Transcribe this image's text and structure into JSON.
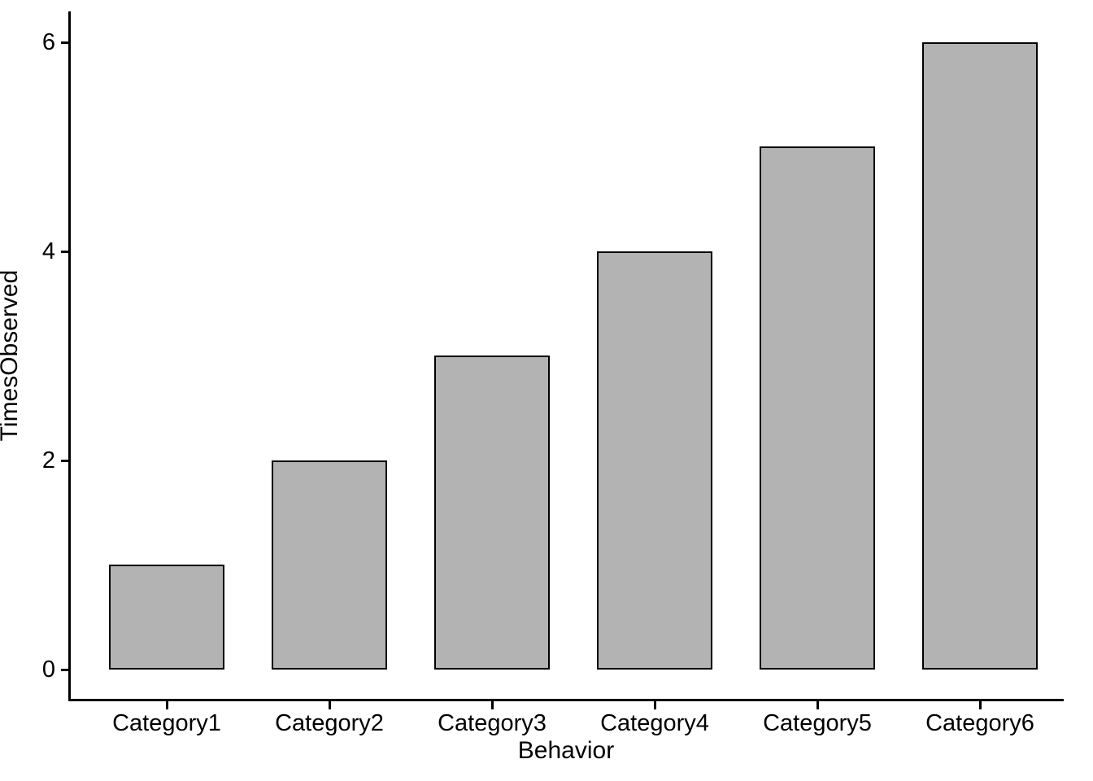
{
  "chart_data": {
    "type": "bar",
    "title": "",
    "xlabel": "Behavior",
    "ylabel": "TimesObserved",
    "categories": [
      "Category1",
      "Category2",
      "Category3",
      "Category4",
      "Category5",
      "Category6"
    ],
    "values": [
      1,
      2,
      3,
      4,
      5,
      6
    ],
    "yticks": [
      0,
      2,
      4,
      6
    ],
    "ylim": [
      0,
      6.3
    ],
    "grid": false,
    "legend": false,
    "bar_fill_color": "#b3b3b3",
    "bar_border_color": "#000000",
    "axis_color": "#000000",
    "background_color": "#ffffff"
  }
}
